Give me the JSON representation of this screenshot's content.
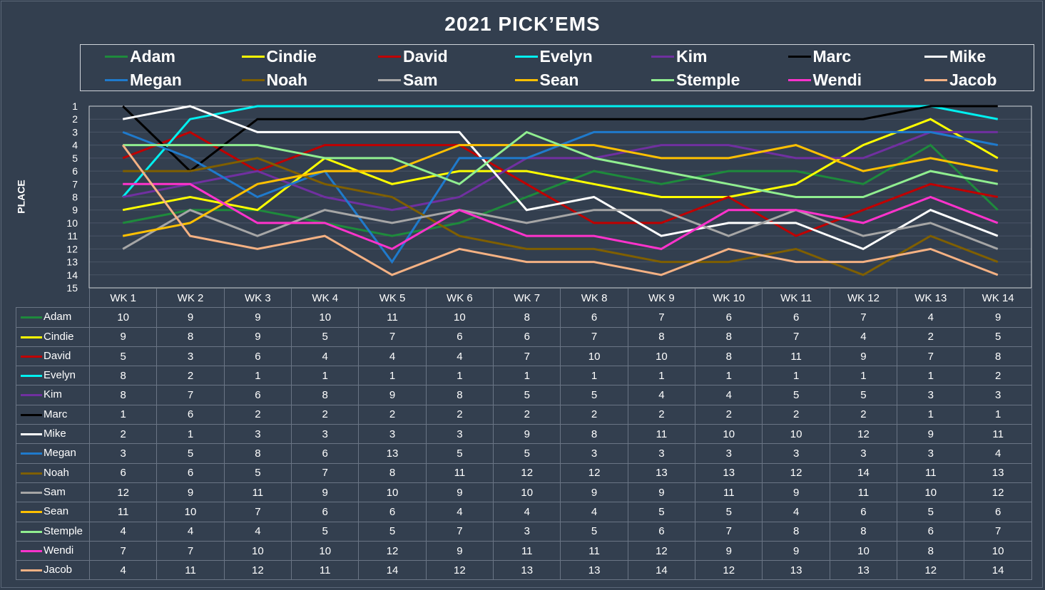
{
  "chart_data": {
    "type": "line",
    "title": "2021 PICK’EMS",
    "ylabel": "PLACE",
    "ylim": [
      1,
      15
    ],
    "y_reversed": true,
    "yticks": [
      1,
      2,
      3,
      4,
      5,
      6,
      7,
      8,
      9,
      10,
      11,
      12,
      13,
      14,
      15
    ],
    "legend_position": "top",
    "grid": true,
    "categories": [
      "WK 1",
      "WK 2",
      "WK 3",
      "WK 4",
      "WK 5",
      "WK 6",
      "WK 7",
      "WK 8",
      "WK 9",
      "WK 10",
      "WK 11",
      "WK 12",
      "WK 13",
      "WK 14"
    ],
    "series": [
      {
        "name": "Adam",
        "color": "#1e8a3c",
        "values": [
          10,
          9,
          9,
          10,
          11,
          10,
          8,
          6,
          7,
          6,
          6,
          7,
          4,
          9
        ]
      },
      {
        "name": "Cindie",
        "color": "#ffff00",
        "values": [
          9,
          8,
          9,
          5,
          7,
          6,
          6,
          7,
          8,
          8,
          7,
          4,
          2,
          5
        ]
      },
      {
        "name": "David",
        "color": "#c00000",
        "values": [
          5,
          3,
          6,
          4,
          4,
          4,
          7,
          10,
          10,
          8,
          11,
          9,
          7,
          8
        ]
      },
      {
        "name": "Evelyn",
        "color": "#00f0f0",
        "values": [
          8,
          2,
          1,
          1,
          1,
          1,
          1,
          1,
          1,
          1,
          1,
          1,
          1,
          2
        ]
      },
      {
        "name": "Kim",
        "color": "#7030a0",
        "values": [
          8,
          7,
          6,
          8,
          9,
          8,
          5,
          5,
          4,
          4,
          5,
          5,
          3,
          3
        ]
      },
      {
        "name": "Marc",
        "color": "#000000",
        "values": [
          1,
          6,
          2,
          2,
          2,
          2,
          2,
          2,
          2,
          2,
          2,
          2,
          1,
          1
        ]
      },
      {
        "name": "Mike",
        "color": "#ffffff",
        "values": [
          2,
          1,
          3,
          3,
          3,
          3,
          9,
          8,
          11,
          10,
          10,
          12,
          9,
          11
        ]
      },
      {
        "name": "Megan",
        "color": "#1f7acc",
        "values": [
          3,
          5,
          8,
          6,
          13,
          5,
          5,
          3,
          3,
          3,
          3,
          3,
          3,
          4
        ]
      },
      {
        "name": "Noah",
        "color": "#7f5f00",
        "values": [
          6,
          6,
          5,
          7,
          8,
          11,
          12,
          12,
          13,
          13,
          12,
          14,
          11,
          13
        ]
      },
      {
        "name": "Sam",
        "color": "#a6a6a6",
        "values": [
          12,
          9,
          11,
          9,
          10,
          9,
          10,
          9,
          9,
          11,
          9,
          11,
          10,
          12
        ]
      },
      {
        "name": "Sean",
        "color": "#ffc000",
        "values": [
          11,
          10,
          7,
          6,
          6,
          4,
          4,
          4,
          5,
          5,
          4,
          6,
          5,
          6
        ]
      },
      {
        "name": "Stemple",
        "color": "#90ee90",
        "values": [
          4,
          4,
          4,
          5,
          5,
          7,
          3,
          5,
          6,
          7,
          8,
          8,
          6,
          7
        ]
      },
      {
        "name": "Wendi",
        "color": "#ff33cc",
        "values": [
          7,
          7,
          10,
          10,
          12,
          9,
          11,
          11,
          12,
          9,
          9,
          10,
          8,
          10
        ]
      },
      {
        "name": "Jacob",
        "color": "#f4b183",
        "values": [
          4,
          11,
          12,
          11,
          14,
          12,
          13,
          13,
          14,
          12,
          13,
          13,
          12,
          14
        ]
      }
    ]
  }
}
